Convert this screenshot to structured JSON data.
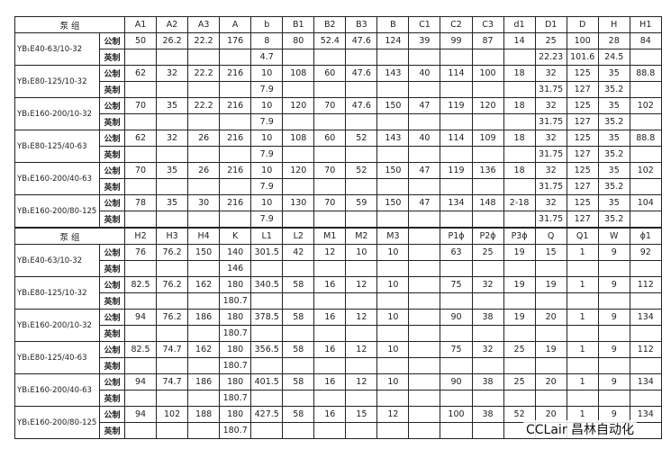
{
  "tables": [
    {
      "header": [
        "泵 组",
        "A1",
        "A2",
        "A3",
        "A",
        "b",
        "B1",
        "B2",
        "B3",
        "B",
        "C1",
        "C2",
        "C3",
        "d1",
        "D1",
        "D",
        "H",
        "H1"
      ],
      "rows": [
        {
          "pump": "YB₁E40-63/10-32",
          "lines": [
            {
              "unit": "公制",
              "cells": [
                50,
                26.2,
                22.2,
                176,
                8,
                80,
                52.4,
                47.6,
                124,
                39,
                99,
                87,
                14,
                25,
                100,
                28,
                84
              ]
            },
            {
              "unit": "英制",
              "cells": [
                null,
                null,
                null,
                null,
                4.7,
                null,
                null,
                null,
                null,
                null,
                null,
                null,
                null,
                22.23,
                101.6,
                24.5,
                null
              ]
            }
          ]
        },
        {
          "pump": "YB₁E80-125/10-32",
          "lines": [
            {
              "unit": "公制",
              "cells": [
                62,
                32,
                22.2,
                216,
                10,
                108,
                60,
                47.6,
                143,
                40,
                114,
                100,
                18,
                32,
                125,
                35,
                88.8
              ]
            },
            {
              "unit": "英制",
              "cells": [
                null,
                null,
                null,
                null,
                7.9,
                null,
                null,
                null,
                null,
                null,
                null,
                null,
                null,
                31.75,
                127,
                35.2,
                null
              ]
            }
          ]
        },
        {
          "pump": "YB₁E160-200/10-32",
          "lines": [
            {
              "unit": "公制",
              "cells": [
                70,
                35,
                22.2,
                216,
                10,
                120,
                70,
                47.6,
                150,
                47,
                119,
                120,
                18,
                32,
                125,
                35,
                102
              ]
            },
            {
              "unit": "英制",
              "cells": [
                null,
                null,
                null,
                null,
                7.9,
                null,
                null,
                null,
                null,
                null,
                null,
                null,
                null,
                31.75,
                127,
                35.2,
                null
              ]
            }
          ]
        },
        {
          "pump": "YB₁E80-125/40-63",
          "lines": [
            {
              "unit": "公制",
              "cells": [
                62,
                32,
                26,
                216,
                10,
                108,
                60,
                52,
                143,
                40,
                114,
                109,
                18,
                32,
                125,
                35,
                88.8
              ]
            },
            {
              "unit": "英制",
              "cells": [
                null,
                null,
                null,
                null,
                7.9,
                null,
                null,
                null,
                null,
                null,
                null,
                null,
                null,
                31.75,
                127,
                35.2,
                null
              ]
            }
          ]
        },
        {
          "pump": "YB₁E160-200/40-63",
          "lines": [
            {
              "unit": "公制",
              "cells": [
                70,
                35,
                26,
                216,
                10,
                120,
                70,
                52,
                150,
                47,
                119,
                136,
                18,
                32,
                125,
                35,
                102
              ]
            },
            {
              "unit": "英制",
              "cells": [
                null,
                null,
                null,
                null,
                7.9,
                null,
                null,
                null,
                null,
                null,
                null,
                null,
                null,
                31.75,
                127,
                35.2,
                null
              ]
            }
          ]
        },
        {
          "pump": "YB₁E160-200/80-125",
          "lines": [
            {
              "unit": "公制",
              "cells": [
                78,
                35,
                30,
                216,
                10,
                130,
                70,
                59,
                150,
                47,
                134,
                148,
                "2-18",
                32,
                125,
                35,
                104
              ]
            },
            {
              "unit": "英制",
              "cells": [
                null,
                null,
                null,
                null,
                7.9,
                null,
                null,
                null,
                null,
                null,
                null,
                null,
                null,
                31.75,
                127,
                35.2,
                null
              ]
            }
          ]
        }
      ]
    },
    {
      "header": [
        "泵 组",
        "H2",
        "H3",
        "H4",
        "K",
        "L1",
        "L2",
        "M1",
        "M2",
        "M3",
        null,
        "P1ϕ",
        "P2ϕ",
        "P3ϕ",
        "Q",
        "Q1",
        "W",
        "ϕ1"
      ],
      "rows": [
        {
          "pump": "YB₁E40-63/10-32",
          "lines": [
            {
              "unit": "公制",
              "cells": [
                76,
                76.2,
                150,
                140,
                301.5,
                42,
                12,
                10,
                10,
                null,
                63,
                25,
                19,
                15,
                1,
                9,
                92
              ]
            },
            {
              "unit": "英制",
              "cells": [
                null,
                null,
                null,
                146,
                null,
                null,
                null,
                null,
                null,
                null,
                null,
                null,
                null,
                null,
                null,
                null,
                null
              ]
            }
          ]
        },
        {
          "pump": "YB₁E80-125/10-32",
          "lines": [
            {
              "unit": "公制",
              "cells": [
                82.5,
                76.2,
                162,
                180,
                340.5,
                58,
                16,
                12,
                10,
                null,
                75,
                32,
                19,
                19,
                1,
                9,
                112
              ]
            },
            {
              "unit": "英制",
              "cells": [
                null,
                null,
                null,
                180.7,
                null,
                null,
                null,
                null,
                null,
                null,
                null,
                null,
                null,
                null,
                null,
                null,
                null
              ]
            }
          ]
        },
        {
          "pump": "YB₁E160-200/10-32",
          "lines": [
            {
              "unit": "公制",
              "cells": [
                94,
                76.2,
                186,
                180,
                378.5,
                58,
                16,
                12,
                10,
                null,
                90,
                38,
                19,
                20,
                1,
                9,
                134
              ]
            },
            {
              "unit": "英制",
              "cells": [
                null,
                null,
                null,
                180.7,
                null,
                null,
                null,
                null,
                null,
                null,
                null,
                null,
                null,
                null,
                null,
                null,
                null
              ]
            }
          ]
        },
        {
          "pump": "YB₁E80-125/40-63",
          "lines": [
            {
              "unit": "公制",
              "cells": [
                82.5,
                74.7,
                162,
                180,
                356.5,
                58,
                16,
                12,
                10,
                null,
                75,
                32,
                25,
                19,
                1,
                9,
                112
              ]
            },
            {
              "unit": "英制",
              "cells": [
                null,
                null,
                null,
                180.7,
                null,
                null,
                null,
                null,
                null,
                null,
                null,
                null,
                null,
                null,
                null,
                null,
                null
              ]
            }
          ]
        },
        {
          "pump": "YB₁E160-200/40-63",
          "lines": [
            {
              "unit": "公制",
              "cells": [
                94,
                74.7,
                186,
                180,
                401.5,
                58,
                16,
                12,
                10,
                null,
                90,
                38,
                25,
                20,
                1,
                9,
                134
              ]
            },
            {
              "unit": "英制",
              "cells": [
                null,
                null,
                null,
                180.7,
                null,
                null,
                null,
                null,
                null,
                null,
                null,
                null,
                null,
                null,
                null,
                null,
                null
              ]
            }
          ]
        },
        {
          "pump": "YB₁E160-200/80-125",
          "lines": [
            {
              "unit": "公制",
              "cells": [
                94,
                102,
                188,
                180,
                427.5,
                58,
                16,
                15,
                12,
                null,
                100,
                38,
                52,
                20,
                1,
                9,
                134
              ]
            },
            {
              "unit": "英制",
              "cells": [
                null,
                null,
                null,
                180.7,
                null,
                null,
                null,
                null,
                null,
                null,
                null,
                null,
                null,
                null,
                null,
                null,
                null
              ]
            }
          ]
        }
      ]
    }
  ],
  "watermark": "CCLair 昌林自动化"
}
